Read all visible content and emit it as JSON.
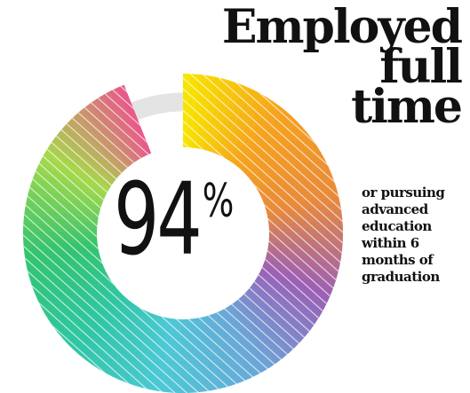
{
  "chart_data": {
    "type": "pie",
    "donut": true,
    "value": 94,
    "max": 100,
    "label": "94%",
    "ring_colors": [
      "#f7e400",
      "#f6a21e",
      "#e98a3a",
      "#9b5fb6",
      "#6aa7d8",
      "#4cc8d6",
      "#2fc6a3",
      "#33c36f",
      "#a6d94a",
      "#e85a8a"
    ],
    "remainder_color": "#e4e4e4",
    "hatch_color": "#ffffff"
  },
  "stat": {
    "value": "94",
    "symbol": "%"
  },
  "headline": {
    "line1": "Employed",
    "line2": "full",
    "line3": "time"
  },
  "subtext": {
    "lines": [
      "or pursuing",
      "advanced",
      "education",
      "within 6",
      "months of",
      "graduation"
    ]
  }
}
